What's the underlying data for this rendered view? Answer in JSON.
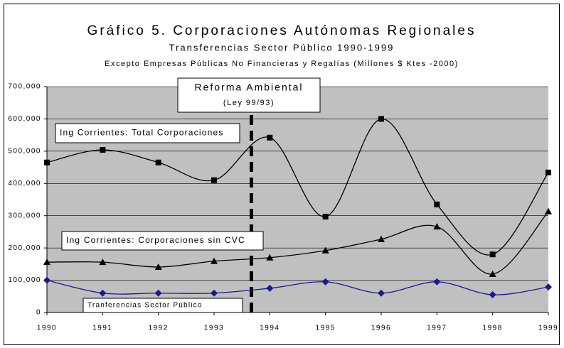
{
  "chart_data": {
    "type": "line",
    "title": "Gráfico 5. Corporaciones Autónomas Regionales",
    "subtitle": "Transferencias Sector Público 1990-1999",
    "note": "Excepto Empresas Públicas No Financieras y Regalías (Millones $ Ktes -2000)",
    "annotations": [
      "Reforma Ambiental",
      "(Ley 99/93)"
    ],
    "categories": [
      "1990",
      "1991",
      "1992",
      "1993",
      "1994",
      "1995",
      "1996",
      "1997",
      "1998",
      "1999"
    ],
    "series": [
      {
        "name": "Ing Corrientes: Total Corporaciones",
        "color": "#000000",
        "marker": "square",
        "values": [
          465000,
          504000,
          465000,
          410000,
          542000,
          297000,
          600000,
          335000,
          180000,
          434000
        ]
      },
      {
        "name": "Ing Corrientes: Corporaciones sin CVC",
        "color": "#000000",
        "marker": "triangle",
        "values": [
          156000,
          156000,
          141000,
          159000,
          170000,
          192000,
          227000,
          266000,
          119000,
          313000
        ]
      },
      {
        "name": "Tranferencias Sector Público",
        "color": "#1a1a8c",
        "marker": "diamond",
        "values": [
          100000,
          60000,
          60000,
          60000,
          75000,
          95000,
          60000,
          95000,
          55000,
          79000
        ]
      }
    ],
    "ylim": [
      0,
      700000
    ],
    "yticks": [
      0,
      {
        "value": 100000,
        "label": "100,000"
      },
      {
        "value": 200000,
        "label": "200,000"
      },
      {
        "value": 300000,
        "label": "300,000"
      },
      {
        "value": 400000,
        "label": "400,000"
      },
      {
        "value": 500000,
        "label": "500,000"
      },
      {
        "value": 600000,
        "label": "600,000"
      },
      {
        "value": 700000,
        "label": "700,000"
      }
    ],
    "grid": true,
    "smooth": true,
    "plot_background": "#c0c0c0"
  }
}
